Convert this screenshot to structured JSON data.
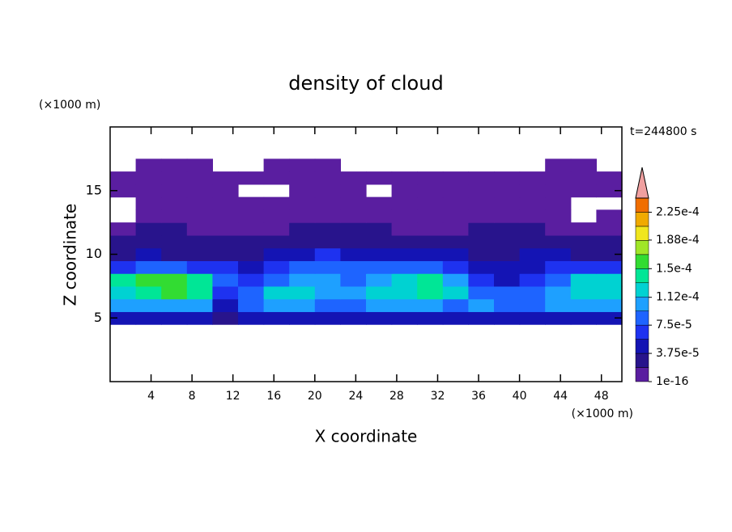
{
  "chart_data": {
    "type": "heatmap",
    "title": "density of cloud",
    "annotation": "t=244800 s",
    "xlabel": "X coordinate",
    "ylabel": "Z coordinate",
    "xunit": "(×1000 m)",
    "yunit": "(×1000 m)",
    "xlim": [
      0,
      50
    ],
    "ylim": [
      0,
      20
    ],
    "xticks": [
      4,
      8,
      12,
      16,
      20,
      24,
      28,
      32,
      36,
      40,
      44,
      48
    ],
    "yticks": [
      5,
      10,
      15
    ],
    "x": [
      1.25,
      3.75,
      6.25,
      8.75,
      11.25,
      13.75,
      16.25,
      18.75,
      21.25,
      23.75,
      26.25,
      28.75,
      31.25,
      33.75,
      36.25,
      38.75,
      41.25,
      43.75,
      46.25,
      48.75
    ],
    "y": [
      5,
      6,
      7,
      8,
      9,
      10,
      11,
      12,
      13,
      14,
      15,
      16,
      17
    ],
    "z": [
      [
        4e-05,
        5e-05,
        5e-05,
        4e-05,
        3e-05,
        4e-05,
        5e-05,
        5e-05,
        4e-05,
        4e-05,
        5e-05,
        5e-05,
        5e-05,
        4e-05,
        5e-05,
        4e-05,
        4e-05,
        5e-05,
        5e-05,
        4e-05
      ],
      [
        0.0001,
        0.00011,
        0.00011,
        0.0001,
        5e-05,
        8e-05,
        0.0001,
        0.0001,
        9e-05,
        9e-05,
        0.0001,
        0.00011,
        0.00011,
        9e-05,
        0.0001,
        9e-05,
        9e-05,
        0.0001,
        0.00011,
        0.0001
      ],
      [
        0.00013,
        0.000145,
        0.00015,
        0.000135,
        7e-05,
        9e-05,
        0.000115,
        0.00012,
        0.00011,
        0.0001,
        0.000115,
        0.00013,
        0.000135,
        0.000115,
        9e-05,
        8e-05,
        9e-05,
        0.00011,
        0.00012,
        0.000115
      ],
      [
        0.00014,
        0.000155,
        0.00016,
        0.00014,
        8e-05,
        6e-05,
        9e-05,
        0.0001,
        0.000105,
        9e-05,
        0.00011,
        0.000125,
        0.00014,
        0.00011,
        6e-05,
        5e-05,
        7e-05,
        9e-05,
        0.000115,
        0.00012
      ],
      [
        7e-05,
        9e-05,
        8e-05,
        7e-05,
        6e-05,
        4e-05,
        6e-05,
        8e-05,
        9e-05,
        8e-05,
        8e-05,
        9e-05,
        9e-05,
        7e-05,
        5e-05,
        4e-05,
        5e-05,
        6e-05,
        7e-05,
        7e-05
      ],
      [
        3e-05,
        4e-05,
        3e-05,
        3e-05,
        3e-05,
        3e-05,
        4e-05,
        5e-05,
        6e-05,
        5e-05,
        4e-05,
        5e-05,
        5e-05,
        4e-05,
        3e-05,
        3e-05,
        4e-05,
        4e-05,
        3e-05,
        3e-05
      ],
      [
        2e-05,
        2e-05,
        2e-05,
        2e-05,
        2e-05,
        2e-05,
        2e-05,
        3e-05,
        3e-05,
        3e-05,
        2e-05,
        3e-05,
        2e-05,
        2e-05,
        2e-05,
        3e-05,
        3e-05,
        2e-05,
        2e-05,
        2e-05
      ],
      [
        5e-06,
        2e-05,
        2e-05,
        5e-06,
        5e-06,
        5e-06,
        5e-06,
        2e-05,
        2e-05,
        2e-05,
        2e-05,
        5e-06,
        5e-06,
        5e-06,
        2e-05,
        2e-05,
        2e-05,
        5e-06,
        5e-06,
        5e-06
      ],
      [
        null,
        5e-06,
        5e-06,
        5e-06,
        5e-06,
        5e-06,
        5e-06,
        5e-06,
        5e-06,
        5e-06,
        5e-06,
        5e-06,
        5e-06,
        5e-06,
        5e-06,
        5e-06,
        5e-06,
        5e-06,
        null,
        5e-06
      ],
      [
        null,
        5e-06,
        5e-06,
        5e-06,
        5e-06,
        5e-06,
        5e-06,
        5e-06,
        5e-06,
        5e-06,
        5e-06,
        5e-06,
        5e-06,
        5e-06,
        5e-06,
        5e-06,
        5e-06,
        5e-06,
        null,
        null
      ],
      [
        5e-06,
        5e-06,
        5e-06,
        5e-06,
        5e-06,
        null,
        null,
        5e-06,
        5e-06,
        5e-06,
        null,
        5e-06,
        5e-06,
        5e-06,
        5e-06,
        5e-06,
        5e-06,
        5e-06,
        5e-06,
        5e-06
      ],
      [
        5e-06,
        5e-06,
        5e-06,
        5e-06,
        5e-06,
        5e-06,
        5e-06,
        5e-06,
        5e-06,
        5e-06,
        5e-06,
        5e-06,
        5e-06,
        5e-06,
        5e-06,
        5e-06,
        5e-06,
        5e-06,
        5e-06,
        5e-06
      ],
      [
        null,
        5e-06,
        5e-06,
        5e-06,
        null,
        null,
        5e-06,
        5e-06,
        5e-06,
        null,
        null,
        null,
        null,
        null,
        null,
        null,
        null,
        5e-06,
        5e-06,
        null
      ]
    ],
    "levels": [
      1e-16,
      1.875e-05,
      3.75e-05,
      5.625e-05,
      7.5e-05,
      9.375e-05,
      0.0001125,
      0.00013125,
      0.00015,
      0.00016875,
      0.0001875,
      0.00020625,
      0.000225,
      0.00024375
    ],
    "colors": [
      "#5a1ea0",
      "#28148c",
      "#1414b4",
      "#1e32f0",
      "#1e64ff",
      "#1ea0ff",
      "#00d2d2",
      "#00e696",
      "#32dc32",
      "#a0e628",
      "#f0e61e",
      "#f0aa00",
      "#f06e00",
      "#e6281e"
    ],
    "extend_color": "#f0a0a0",
    "cticks": [
      1e-16,
      {
        "value": 3.75e-05,
        "label": "3.75e-5"
      },
      {
        "value": 7.5e-05,
        "label": "7.5e-5"
      },
      {
        "value": 0.000112,
        "label": "1.12e-4"
      },
      {
        "value": 0.00015,
        "label": "1.5e-4"
      },
      {
        "value": 0.000188,
        "label": "1.88e-4"
      },
      {
        "value": 0.000225,
        "label": "2.25e-4"
      }
    ]
  }
}
